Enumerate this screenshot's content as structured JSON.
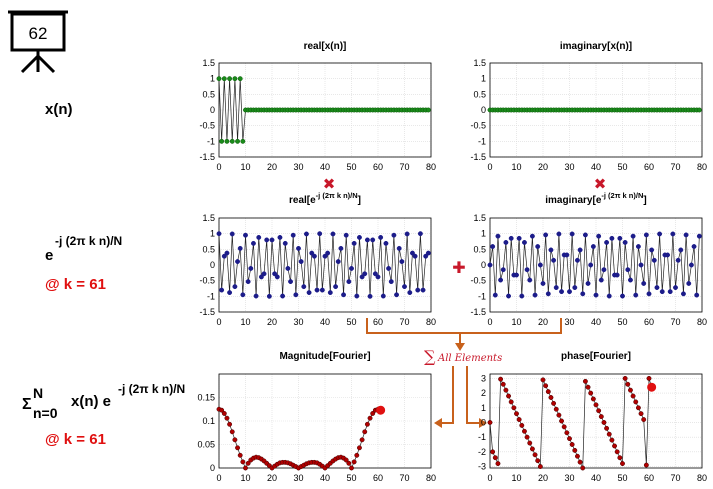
{
  "slide_number": "62",
  "left_labels": {
    "xn": "x(n)",
    "kernel_base": "e",
    "kernel_exp": "-j (2π k n)/N",
    "k_label_1": "@ k = 61",
    "sum_sigma": "Σ",
    "sum_top": "N",
    "sum_bottom": "n=0",
    "sum_body": "x(n) e",
    "sum_exp": "-j (2π k n)/N",
    "k_label_2": "@ k = 61"
  },
  "operators": {
    "multiply": "✖",
    "plus": "✚",
    "sum_symbol": "∑",
    "sum_text": "All Elements"
  },
  "colors": {
    "green": "#1a8a1a",
    "green_edge": "#0b5a0b",
    "blue": "#1c1c8a",
    "red_dot": "#b00000",
    "accent_red": "#e01010",
    "orange": "#c8611c"
  },
  "chart_data": [
    {
      "id": "real_xn",
      "type": "line",
      "title": "real[x(n)]",
      "title_exp": "",
      "title_suffix": "",
      "xlim": [
        0,
        80
      ],
      "ylim": [
        -1.5,
        1.5
      ],
      "xticks": [
        0,
        10,
        20,
        30,
        40,
        50,
        60,
        70,
        80
      ],
      "yticks": [
        -1.5,
        -1,
        -0.5,
        0,
        0.5,
        1,
        1.5
      ],
      "yticklabels": [
        "-1.5",
        "-1",
        "-0.5",
        "0",
        "0.5",
        "1",
        "1.5"
      ],
      "n": 80,
      "values": [
        1,
        -1,
        1,
        -1,
        1,
        -1,
        1,
        -1,
        1,
        -1,
        0,
        0,
        0,
        0,
        0,
        0,
        0,
        0,
        0,
        0,
        0,
        0,
        0,
        0,
        0,
        0,
        0,
        0,
        0,
        0,
        0,
        0,
        0,
        0,
        0,
        0,
        0,
        0,
        0,
        0,
        0,
        0,
        0,
        0,
        0,
        0,
        0,
        0,
        0,
        0,
        0,
        0,
        0,
        0,
        0,
        0,
        0,
        0,
        0,
        0,
        0,
        0,
        0,
        0,
        0,
        0,
        0,
        0,
        0,
        0,
        0,
        0,
        0,
        0,
        0,
        0,
        0,
        0,
        0,
        0
      ],
      "marker": "green"
    },
    {
      "id": "imag_xn",
      "type": "line",
      "title": "imaginary[x(n)]",
      "title_exp": "",
      "title_suffix": "",
      "xlim": [
        0,
        80
      ],
      "ylim": [
        -1.5,
        1.5
      ],
      "xticks": [
        0,
        10,
        20,
        30,
        40,
        50,
        60,
        70,
        80
      ],
      "yticks": [
        -1.5,
        -1,
        -0.5,
        0,
        0.5,
        1,
        1.5
      ],
      "yticklabels": [
        "-1.5",
        "-1",
        "-0.5",
        "0",
        "0.5",
        "1",
        "1.5"
      ],
      "n": 80,
      "values": [
        0,
        0,
        0,
        0,
        0,
        0,
        0,
        0,
        0,
        0,
        0,
        0,
        0,
        0,
        0,
        0,
        0,
        0,
        0,
        0,
        0,
        0,
        0,
        0,
        0,
        0,
        0,
        0,
        0,
        0,
        0,
        0,
        0,
        0,
        0,
        0,
        0,
        0,
        0,
        0,
        0,
        0,
        0,
        0,
        0,
        0,
        0,
        0,
        0,
        0,
        0,
        0,
        0,
        0,
        0,
        0,
        0,
        0,
        0,
        0,
        0,
        0,
        0,
        0,
        0,
        0,
        0,
        0,
        0,
        0,
        0,
        0,
        0,
        0,
        0,
        0,
        0,
        0,
        0,
        0
      ],
      "marker": "green"
    },
    {
      "id": "real_kernel",
      "type": "line",
      "title": "real[e",
      "title_exp": "-j (2π k n)/N",
      "title_suffix": "]",
      "xlim": [
        0,
        80
      ],
      "ylim": [
        -1.5,
        1.5
      ],
      "xticks": [
        0,
        10,
        20,
        30,
        40,
        50,
        60,
        70,
        80
      ],
      "yticks": [
        -1.5,
        -1,
        -0.5,
        0,
        0.5,
        1,
        1.5
      ],
      "yticklabels": [
        "-1.5",
        "-1",
        "-0.5",
        "0",
        "0.5",
        "1",
        "1.5"
      ],
      "n": 80,
      "values": [
        1.0,
        -0.8,
        0.28,
        0.38,
        -0.88,
        0.99,
        -0.69,
        0.11,
        0.53,
        -0.95,
        0.95,
        -0.53,
        -0.11,
        0.69,
        -0.99,
        0.88,
        -0.38,
        -0.28,
        0.8,
        -1.0,
        0.8,
        -0.28,
        -0.38,
        0.88,
        -0.99,
        0.69,
        -0.11,
        -0.53,
        0.95,
        -0.95,
        0.53,
        0.11,
        -0.69,
        0.99,
        -0.88,
        0.38,
        0.28,
        -0.8,
        1.0,
        -0.8,
        0.28,
        0.38,
        -0.88,
        0.99,
        -0.69,
        0.11,
        0.53,
        -0.95,
        0.95,
        -0.53,
        -0.11,
        0.69,
        -0.99,
        0.88,
        -0.38,
        -0.28,
        0.8,
        -1.0,
        0.8,
        -0.28,
        -0.38,
        0.88,
        -0.99,
        0.69,
        -0.11,
        -0.53,
        0.95,
        -0.95,
        0.53,
        0.11,
        -0.69,
        0.99,
        -0.88,
        0.38,
        0.28,
        -0.8,
        1.0,
        -0.8,
        0.28,
        0.38
      ],
      "marker": "blue"
    },
    {
      "id": "imag_kernel",
      "type": "line",
      "title": "imaginary[e",
      "title_exp": "-j (2π k n)/N",
      "title_suffix": "]",
      "xlim": [
        0,
        80
      ],
      "ylim": [
        -1.5,
        1.5
      ],
      "xticks": [
        0,
        10,
        20,
        30,
        40,
        50,
        60,
        70,
        80
      ],
      "yticks": [
        -1.5,
        -1,
        -0.5,
        0,
        0.5,
        1,
        1.5
      ],
      "yticklabels": [
        "-1.5",
        "-1",
        "-0.5",
        "0",
        "0.5",
        "1",
        "1.5"
      ],
      "n": 80,
      "values": [
        0.0,
        0.59,
        -0.96,
        0.92,
        -0.48,
        -0.15,
        0.72,
        -0.99,
        0.85,
        -0.32,
        -0.32,
        0.85,
        -0.99,
        0.72,
        -0.15,
        -0.48,
        0.92,
        -0.96,
        0.59,
        0.0,
        -0.59,
        0.96,
        -0.92,
        0.48,
        0.15,
        -0.72,
        0.99,
        -0.85,
        0.32,
        0.32,
        -0.85,
        0.99,
        -0.72,
        0.15,
        0.48,
        -0.92,
        0.96,
        -0.59,
        0.0,
        0.59,
        -0.96,
        0.92,
        -0.48,
        -0.15,
        0.72,
        -0.99,
        0.85,
        -0.32,
        -0.32,
        0.85,
        -0.99,
        0.72,
        -0.15,
        -0.48,
        0.92,
        -0.96,
        0.59,
        0.0,
        -0.59,
        0.96,
        -0.92,
        0.48,
        0.15,
        -0.72,
        0.99,
        -0.85,
        0.32,
        0.32,
        -0.85,
        0.99,
        -0.72,
        0.15,
        0.48,
        -0.92,
        0.96,
        -0.59,
        0.0,
        0.59,
        -0.96,
        0.92
      ],
      "marker": "blue"
    },
    {
      "id": "magnitude",
      "type": "line",
      "title": "Magnitude[Fourier]",
      "title_exp": "",
      "title_suffix": "",
      "xlim": [
        0,
        80
      ],
      "ylim": [
        0,
        0.2
      ],
      "xticks": [
        0,
        10,
        20,
        30,
        40,
        50,
        60,
        70,
        80
      ],
      "yticks": [
        0,
        0.05,
        0.1,
        0.15
      ],
      "yticklabels": [
        "0",
        "0.05",
        "0.1",
        "0.15"
      ],
      "n": 62,
      "values": [
        0.125,
        0.123,
        0.116,
        0.106,
        0.093,
        0.077,
        0.06,
        0.043,
        0.027,
        0.013,
        0.0,
        0.01,
        0.017,
        0.021,
        0.023,
        0.022,
        0.019,
        0.015,
        0.01,
        0.005,
        0.0,
        0.004,
        0.008,
        0.011,
        0.012,
        0.012,
        0.011,
        0.009,
        0.006,
        0.003,
        0.0,
        0.003,
        0.006,
        0.009,
        0.011,
        0.012,
        0.012,
        0.011,
        0.008,
        0.004,
        0.0,
        0.005,
        0.01,
        0.015,
        0.019,
        0.022,
        0.023,
        0.021,
        0.017,
        0.01,
        0.0,
        0.013,
        0.027,
        0.043,
        0.06,
        0.077,
        0.093,
        0.106,
        0.116,
        0.123,
        0.125,
        0.123
      ],
      "index_offset": 40,
      "highlight_index": 61,
      "marker": "red"
    },
    {
      "id": "phase",
      "type": "line",
      "title": "phase[Fourier]",
      "title_exp": "",
      "title_suffix": "",
      "xlim": [
        0,
        80
      ],
      "ylim": [
        -3.1,
        3.3
      ],
      "xticks": [
        0,
        10,
        20,
        30,
        40,
        50,
        60,
        70,
        80
      ],
      "yticks": [
        -3,
        -2,
        -1,
        0,
        1,
        2,
        3
      ],
      "yticklabels": [
        "-3",
        "-2",
        "-1",
        "0",
        "1",
        "2",
        "3"
      ],
      "n": 62,
      "values": [
        0.0,
        -2.0,
        -2.4,
        -2.8,
        2.95,
        2.6,
        2.2,
        1.8,
        1.4,
        1.0,
        0.6,
        0.2,
        -0.2,
        -0.6,
        -1.0,
        -1.4,
        -1.8,
        -2.2,
        -2.6,
        -3.0,
        2.9,
        2.5,
        2.1,
        1.7,
        1.3,
        0.9,
        0.5,
        0.1,
        -0.3,
        -0.7,
        -1.1,
        -1.5,
        -1.9,
        -2.3,
        -2.7,
        -3.1,
        2.8,
        2.4,
        2.0,
        1.6,
        1.2,
        0.8,
        0.4,
        0.0,
        -0.4,
        -0.8,
        -1.2,
        -1.6,
        -2.0,
        -2.4,
        -2.8,
        3.0,
        2.6,
        2.2,
        1.8,
        1.4,
        1.0,
        0.6,
        0.2,
        -2.9,
        3.0,
        2.4
      ],
      "index_offset": 0,
      "highlight_index": 61,
      "marker": "red"
    }
  ]
}
